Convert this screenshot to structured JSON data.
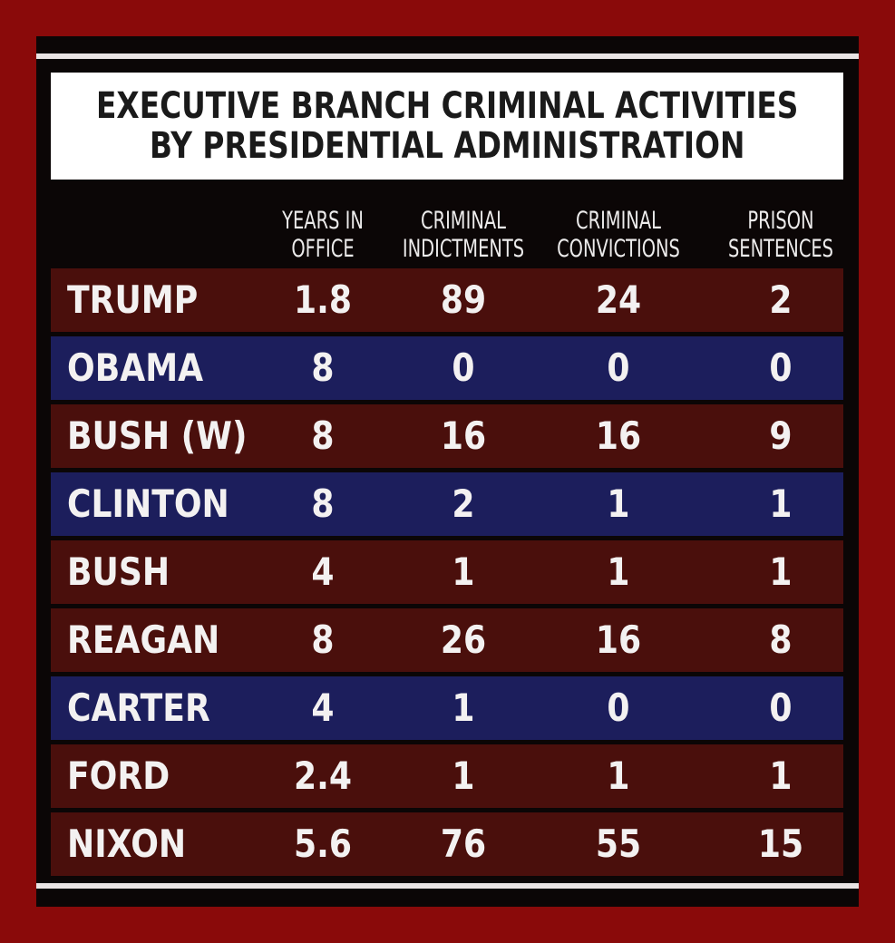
{
  "chart_data": {
    "type": "table",
    "title": "EXECUTIVE BRANCH CRIMINAL ACTIVITIES BY PRESIDENTIAL ADMINISTRATION",
    "title_lines": [
      "EXECUTIVE BRANCH CRIMINAL ACTIVITIES",
      "BY PRESIDENTIAL ADMINISTRATION"
    ],
    "columns": [
      {
        "key": "years",
        "lines": [
          "YEARS IN",
          "OFFICE"
        ]
      },
      {
        "key": "indictments",
        "lines": [
          "CRIMINAL",
          "INDICTMENTS"
        ]
      },
      {
        "key": "convictions",
        "lines": [
          "CRIMINAL",
          "CONVICTIONS"
        ]
      },
      {
        "key": "sentences",
        "lines": [
          "PRISON",
          "SENTENCES"
        ]
      }
    ],
    "rows": [
      {
        "name": "TRUMP",
        "party": "red",
        "values": [
          "1.8",
          "89",
          "24",
          "2"
        ]
      },
      {
        "name": "OBAMA",
        "party": "blue",
        "values": [
          "8",
          "0",
          "0",
          "0"
        ]
      },
      {
        "name": "BUSH (W)",
        "party": "red",
        "values": [
          "8",
          "16",
          "16",
          "9"
        ]
      },
      {
        "name": "CLINTON",
        "party": "blue",
        "values": [
          "8",
          "2",
          "1",
          "1"
        ]
      },
      {
        "name": "BUSH",
        "party": "red",
        "values": [
          "4",
          "1",
          "1",
          "1"
        ]
      },
      {
        "name": "REAGAN",
        "party": "red",
        "values": [
          "8",
          "26",
          "16",
          "8"
        ]
      },
      {
        "name": "CARTER",
        "party": "blue",
        "values": [
          "4",
          "1",
          "0",
          "0"
        ]
      },
      {
        "name": "FORD",
        "party": "red",
        "values": [
          "2.4",
          "1",
          "1",
          "1"
        ]
      },
      {
        "name": "NIXON",
        "party": "red",
        "values": [
          "5.6",
          "76",
          "55",
          "15"
        ]
      }
    ]
  },
  "colors": {
    "outer_border": "#8a0a0a",
    "background": "#0b0606",
    "red_row": "#4a0f0c",
    "blue_row": "#1c1e5c",
    "title_bg": "#ffffff",
    "text": "#f3f1f1"
  }
}
